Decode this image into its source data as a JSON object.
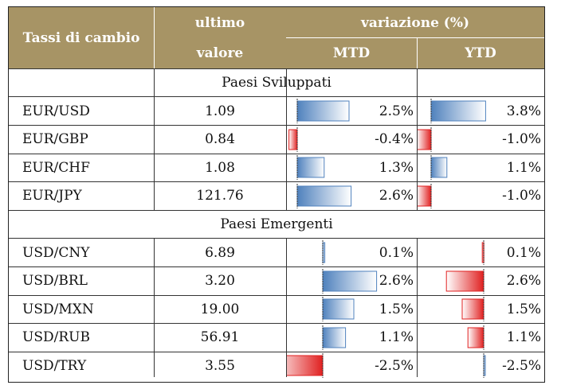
{
  "header": {
    "col1": "Tassi di cambio",
    "col2_line1": "ultimo",
    "col2_line2": "valore",
    "group": "variazione (%)",
    "mtd": "MTD",
    "ytd": "YTD"
  },
  "colors": {
    "header_bg": "#a79465",
    "positive_bar": "#4f81bd",
    "negative_bar": "#e02020"
  },
  "sections": [
    {
      "title": "Paesi Sviluppati",
      "rows": [
        {
          "pair": "EUR/USD",
          "value": "1.09",
          "mtd": "2.5%",
          "ytd": "3.8%",
          "mtd_v": 2.5,
          "ytd_v": 3.8
        },
        {
          "pair": "EUR/GBP",
          "value": "0.84",
          "mtd": "-0.4%",
          "ytd": "-1.0%",
          "mtd_v": -0.4,
          "ytd_v": -1.0
        },
        {
          "pair": "EUR/CHF",
          "value": "1.08",
          "mtd": "1.3%",
          "ytd": "1.1%",
          "mtd_v": 1.3,
          "ytd_v": 1.1
        },
        {
          "pair": "EUR/JPY",
          "value": "121.76",
          "mtd": "2.6%",
          "ytd": "-1.0%",
          "mtd_v": 2.6,
          "ytd_v": -1.0
        }
      ]
    },
    {
      "title": "Paesi Emergenti",
      "rows": [
        {
          "pair": "USD/CNY",
          "value": "6.89",
          "mtd": "0.1%",
          "ytd": "0.1%",
          "mtd_v": 0.1,
          "ytd_v": 0.1
        },
        {
          "pair": "USD/BRL",
          "value": "3.20",
          "mtd": "2.6%",
          "ytd": "2.6%",
          "mtd_v": 2.6,
          "ytd_v": 2.6
        },
        {
          "pair": "USD/MXN",
          "value": "19.00",
          "mtd": "1.5%",
          "ytd": "1.5%",
          "mtd_v": 1.5,
          "ytd_v": 1.5
        },
        {
          "pair": "USD/RUB",
          "value": "56.91",
          "mtd": "1.1%",
          "ytd": "1.1%",
          "mtd_v": 1.1,
          "ytd_v": 1.1
        },
        {
          "pair": "USD/TRY",
          "value": "3.55",
          "mtd": "-2.5%",
          "ytd": "-2.5%",
          "mtd_v": -2.5,
          "ytd_v": -2.5
        }
      ]
    }
  ]
}
